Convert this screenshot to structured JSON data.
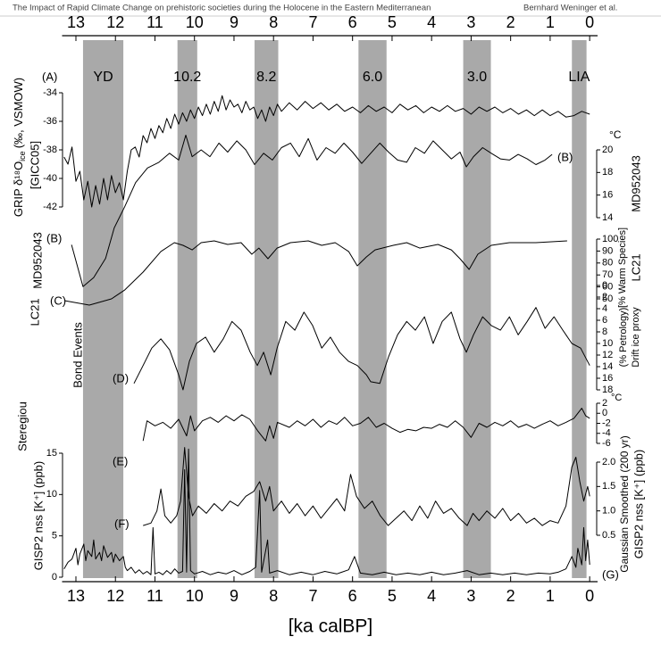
{
  "header": {
    "title": "The Impact of Rapid Climate Change on prehistoric societies during the Holocene in the Eastern Mediterranean",
    "authors": "Bernhard Weninger et al."
  },
  "chart_data": {
    "type": "line",
    "xlabel": "[ka calBP]",
    "xlim": [
      13.35,
      -0.2
    ],
    "xticks": [
      13,
      12,
      11,
      10,
      9,
      8,
      7,
      6,
      5,
      4,
      3,
      2,
      1,
      0
    ],
    "color": "#000000",
    "band_color": "#a9a9a9",
    "events": [
      {
        "label": "YD",
        "start": 12.82,
        "end": 11.8
      },
      {
        "label": "10.2",
        "start": 10.43,
        "end": 9.93
      },
      {
        "label": "8.2",
        "start": 8.48,
        "end": 7.88
      },
      {
        "label": "6.0",
        "start": 5.85,
        "end": 5.14
      },
      {
        "label": "3.0",
        "start": 3.2,
        "end": 2.5
      },
      {
        "label": "LIA",
        "start": 0.45,
        "end": 0.08
      }
    ],
    "panels": [
      {
        "label": "(A)",
        "ylabel": [
          "GRIP δ¹⁸O",
          "ice",
          "(‰, VSMOW)",
          "[GICC05]"
        ],
        "yaxis": "left",
        "ylim": [
          -42,
          -34
        ],
        "yticks": [
          -34,
          -36,
          -38,
          -40,
          -42
        ],
        "x": [
          13.3,
          13.2,
          13.1,
          13.0,
          12.9,
          12.8,
          12.7,
          12.6,
          12.5,
          12.4,
          12.3,
          12.2,
          12.1,
          12.0,
          11.9,
          11.8,
          11.7,
          11.6,
          11.5,
          11.4,
          11.3,
          11.2,
          11.1,
          11.0,
          10.9,
          10.8,
          10.7,
          10.6,
          10.5,
          10.4,
          10.3,
          10.2,
          10.1,
          10.0,
          9.9,
          9.8,
          9.7,
          9.6,
          9.5,
          9.4,
          9.3,
          9.2,
          9.1,
          9.0,
          8.9,
          8.8,
          8.7,
          8.6,
          8.5,
          8.4,
          8.3,
          8.2,
          8.1,
          8.0,
          7.9,
          7.8,
          7.6,
          7.4,
          7.2,
          7.0,
          6.8,
          6.6,
          6.4,
          6.2,
          6.0,
          5.8,
          5.6,
          5.4,
          5.2,
          5.0,
          4.8,
          4.6,
          4.4,
          4.2,
          4.0,
          3.8,
          3.6,
          3.4,
          3.2,
          3.0,
          2.8,
          2.6,
          2.4,
          2.2,
          2.0,
          1.8,
          1.6,
          1.4,
          1.2,
          1.0,
          0.8,
          0.6,
          0.4,
          0.2,
          0.0
        ],
        "values": [
          -38.5,
          -39,
          -37.8,
          -40.2,
          -39.5,
          -41.5,
          -40.2,
          -42,
          -40.5,
          -41.8,
          -40,
          -41.5,
          -39.8,
          -41,
          -40.3,
          -41.5,
          -39.5,
          -38,
          -37.8,
          -38.5,
          -37,
          -37.5,
          -36.5,
          -37.2,
          -36.3,
          -36.8,
          -35.8,
          -36.5,
          -35.5,
          -36.2,
          -35.4,
          -36,
          -35.2,
          -35.8,
          -35,
          -35.6,
          -34.8,
          -35.5,
          -34.6,
          -35.3,
          -34.2,
          -35.2,
          -34.5,
          -35,
          -34.8,
          -35.4,
          -34.6,
          -35.2,
          -35,
          -35.8,
          -35.2,
          -36,
          -35,
          -35.6,
          -34.8,
          -35.3,
          -34.7,
          -35.2,
          -34.6,
          -35.1,
          -34.7,
          -35.2,
          -34.8,
          -35.3,
          -35,
          -35.4,
          -34.9,
          -35.3,
          -35,
          -35.4,
          -34.8,
          -35.2,
          -34.9,
          -35.4,
          -35,
          -35.3,
          -34.9,
          -35.3,
          -35.1,
          -35.5,
          -35,
          -35.3,
          -35,
          -35.4,
          -35.1,
          -35.5,
          -35.2,
          -35.6,
          -35.2,
          -35.6,
          -35.3,
          -35.7,
          -35.6,
          -35.3,
          -35.5
        ]
      },
      {
        "label": "(B)",
        "name": "MD952043",
        "unit": "°C",
        "yaxis": "right",
        "ylim": [
          14,
          20
        ],
        "yticks": [
          14,
          16,
          18,
          20
        ],
        "x": [
          13.11,
          12.82,
          12.55,
          12.25,
          12.03,
          11.76,
          11.49,
          11.19,
          10.9,
          10.63,
          10.4,
          10.22,
          10.06,
          9.83,
          9.61,
          9.38,
          9.16,
          8.93,
          8.7,
          8.48,
          8.25,
          8.03,
          7.8,
          7.57,
          7.35,
          7.12,
          6.9,
          6.67,
          6.44,
          6.22,
          6.0,
          5.77,
          5.54,
          5.31,
          5.09,
          4.86,
          4.63,
          4.41,
          4.18,
          3.96,
          3.73,
          3.5,
          3.28,
          3.12,
          2.94,
          2.71,
          2.49,
          2.26,
          2.03,
          1.81,
          1.58,
          1.36,
          1.13,
          0.95
        ],
        "values": [
          11.6,
          7.9,
          8.7,
          10.4,
          13.1,
          15.0,
          17.1,
          18.4,
          18.9,
          19.7,
          19.1,
          21.3,
          19.4,
          20.0,
          19.4,
          20.6,
          19.8,
          20.8,
          20.0,
          18.7,
          19.7,
          19.1,
          20.2,
          20.6,
          19.4,
          21.0,
          19.1,
          20.2,
          19.7,
          20.6,
          19.8,
          18.8,
          19.7,
          20.6,
          19.8,
          19.1,
          18.9,
          20.2,
          19.7,
          20.8,
          20.0,
          19.2,
          19.8,
          18.5,
          19.4,
          20.2,
          19.7,
          19.2,
          19.1,
          19.6,
          19.2,
          18.7,
          19.1,
          19.6
        ]
      },
      {
        "label": "(C)",
        "name": "LC21",
        "ylabel": "[% Warm Species]",
        "yaxis": "right",
        "ylim": [
          50,
          100
        ],
        "yticks": [
          50,
          60,
          70,
          80,
          90,
          100
        ],
        "x": [
          13.29,
          12.66,
          12.1,
          11.76,
          11.3,
          10.85,
          10.51,
          10.29,
          10.06,
          9.83,
          9.5,
          9.16,
          8.82,
          8.55,
          8.37,
          8.14,
          7.91,
          7.57,
          7.12,
          6.78,
          6.44,
          6.1,
          5.88,
          5.65,
          5.43,
          4.97,
          4.63,
          4.3,
          3.84,
          3.5,
          3.28,
          3.05,
          2.83,
          2.49,
          2.03,
          1.36,
          0.57
        ],
        "values": [
          48.5,
          44.8,
          50,
          57.5,
          72.4,
          89.6,
          97,
          94.8,
          91,
          97,
          98.5,
          95.5,
          97,
          87.3,
          92.5,
          83.6,
          92.5,
          97,
          98.5,
          94.8,
          97,
          89.6,
          77.6,
          85.1,
          91,
          94.8,
          97,
          92.5,
          95.5,
          91,
          83.6,
          74.6,
          87.3,
          94.8,
          97,
          97,
          98.5
        ]
      },
      {
        "label": "(D)",
        "name": "Bond Events",
        "ylabel": [
          "Drift ice proxy",
          "(% Petrology)"
        ],
        "yaxis": "right",
        "ylim": [
          18,
          0
        ],
        "yticks": [
          0,
          2,
          4,
          6,
          8,
          10,
          12,
          14,
          16,
          18
        ],
        "x": [
          11.53,
          11.3,
          11.08,
          10.85,
          10.63,
          10.4,
          10.29,
          10.13,
          9.95,
          9.72,
          9.5,
          9.27,
          9.05,
          8.82,
          8.59,
          8.41,
          8.25,
          8.07,
          7.91,
          7.69,
          7.46,
          7.23,
          7.01,
          6.78,
          6.56,
          6.33,
          6.1,
          5.88,
          5.65,
          5.54,
          5.31,
          5.09,
          4.86,
          4.63,
          4.41,
          4.18,
          3.96,
          3.73,
          3.5,
          3.28,
          3.12,
          2.94,
          2.71,
          2.49,
          2.26,
          2.03,
          1.81,
          1.58,
          1.36,
          1.13,
          0.9,
          0.68,
          0.45,
          0.23,
          0.0
        ],
        "values": [
          16.9,
          13.8,
          10.8,
          9.2,
          11.1,
          15.4,
          18.0,
          13.1,
          10.0,
          8.9,
          11.5,
          9.2,
          6.2,
          7.7,
          11.5,
          13.8,
          11.5,
          15.4,
          10.8,
          6.2,
          7.7,
          4.6,
          6.9,
          10.8,
          8.9,
          11.5,
          13.1,
          13.8,
          15.4,
          16.6,
          16.9,
          12.3,
          8.5,
          6.2,
          7.7,
          5.4,
          10.0,
          6.2,
          4.6,
          9.2,
          11.5,
          8.5,
          5.4,
          6.9,
          7.7,
          5.4,
          8.5,
          6.2,
          3.8,
          7.4,
          5.4,
          7.7,
          10.0,
          10.8,
          13.8
        ]
      },
      {
        "label": "(E)",
        "name": "Steregiou",
        "unit": "°C",
        "yaxis": "right",
        "ylim": [
          -6,
          2
        ],
        "yticks": [
          2,
          0,
          -2,
          -4,
          -6
        ],
        "x": [
          11.3,
          11.2,
          11.0,
          10.8,
          10.6,
          10.4,
          10.2,
          10.1,
          10.0,
          9.8,
          9.6,
          9.4,
          9.2,
          9.0,
          8.8,
          8.6,
          8.4,
          8.2,
          8.1,
          8.0,
          7.9,
          7.6,
          7.4,
          7.2,
          7.0,
          6.8,
          6.6,
          6.4,
          6.2,
          6.0,
          5.8,
          5.6,
          5.4,
          5.2,
          5.0,
          4.8,
          4.6,
          4.4,
          4.2,
          4.0,
          3.8,
          3.6,
          3.4,
          3.2,
          3.0,
          2.8,
          2.6,
          2.4,
          2.2,
          2.0,
          1.8,
          1.6,
          1.4,
          1.2,
          1.0,
          0.8,
          0.6,
          0.4,
          0.2,
          0.1,
          0.0
        ],
        "values": [
          -5.5,
          -1.5,
          -2.5,
          -1.8,
          -3.0,
          -1.2,
          -4.5,
          -0.5,
          -3.5,
          -1.5,
          -0.8,
          -1.8,
          -0.5,
          -1.5,
          -0.3,
          -1.2,
          -3.5,
          -5.5,
          -2.5,
          -5.0,
          -1.8,
          -2.8,
          -1.5,
          -2.5,
          -1.2,
          -2.8,
          -1.5,
          -2.2,
          -0.8,
          -2.5,
          -2.0,
          -0.8,
          -2.8,
          -2.0,
          -3.0,
          -3.8,
          -3.2,
          -3.5,
          -2.8,
          -3.0,
          -2.2,
          -2.8,
          -1.5,
          -2.8,
          -4.8,
          -2.0,
          -2.8,
          -1.8,
          -2.5,
          -1.5,
          -2.8,
          -2.2,
          -3.0,
          -2.2,
          -1.5,
          -2.5,
          -1.8,
          -1.0,
          1.0,
          -0.5,
          -1.0
        ]
      },
      {
        "label": "(F)",
        "ylabel": [
          "Gaussian Smoothed (200 yr)",
          "GISP2 nss [K⁺] (ppb)"
        ],
        "yaxis": "right",
        "ylim": [
          0.5,
          2
        ],
        "yticks": [
          0.5,
          {
            "value": 1,
            "label": "1.0"
          },
          1.5,
          {
            "value": 2,
            "label": "2.0"
          }
        ],
        "x": [
          11.3,
          11.1,
          10.95,
          10.85,
          10.75,
          10.6,
          10.45,
          10.35,
          10.25,
          10.15,
          10.05,
          9.9,
          9.7,
          9.5,
          9.3,
          9.1,
          8.9,
          8.7,
          8.5,
          8.35,
          8.2,
          8.1,
          8.0,
          7.8,
          7.6,
          7.4,
          7.2,
          7.0,
          6.8,
          6.6,
          6.4,
          6.2,
          6.05,
          5.9,
          5.7,
          5.5,
          5.3,
          5.1,
          4.9,
          4.7,
          4.5,
          4.3,
          4.1,
          3.9,
          3.7,
          3.5,
          3.3,
          3.1,
          2.95,
          2.8,
          2.6,
          2.4,
          2.2,
          2.0,
          1.8,
          1.6,
          1.4,
          1.2,
          1.0,
          0.8,
          0.6,
          0.45,
          0.35,
          0.25,
          0.15,
          0.05,
          0.0
        ],
        "values": [
          0.7,
          0.75,
          1.0,
          1.45,
          0.9,
          0.75,
          0.9,
          1.2,
          2.3,
          1.3,
          0.9,
          1.1,
          0.95,
          1.15,
          1.0,
          1.2,
          1.1,
          1.3,
          1.4,
          1.6,
          1.2,
          1.5,
          1.0,
          1.2,
          0.95,
          1.15,
          0.9,
          1.1,
          0.85,
          1.05,
          1.25,
          1.0,
          1.75,
          1.3,
          1.05,
          1.2,
          0.9,
          0.7,
          0.85,
          1.0,
          0.8,
          1.1,
          0.85,
          1.2,
          0.95,
          1.05,
          0.85,
          0.7,
          0.95,
          0.8,
          1.0,
          0.85,
          1.05,
          0.8,
          0.95,
          0.75,
          0.85,
          0.7,
          0.8,
          0.75,
          1.1,
          1.9,
          2.1,
          1.6,
          1.2,
          1.5,
          1.3
        ]
      },
      {
        "label": "(G)",
        "ylabel": "GISP2 nss [K⁺] (ppb)",
        "yaxis": "left",
        "ylim": [
          0,
          15
        ],
        "yticks": [
          0,
          5,
          10,
          15
        ],
        "x": [
          13.3,
          13.2,
          13.1,
          13.0,
          12.95,
          12.9,
          12.8,
          12.75,
          12.7,
          12.6,
          12.55,
          12.5,
          12.4,
          12.35,
          12.3,
          12.2,
          12.1,
          12.05,
          12.0,
          11.9,
          11.8,
          11.75,
          11.7,
          11.6,
          11.5,
          11.4,
          11.3,
          11.2,
          11.1,
          11.05,
          11.0,
          10.9,
          10.8,
          10.7,
          10.6,
          10.5,
          10.4,
          10.3,
          10.25,
          10.2,
          10.15,
          10.1,
          10.0,
          9.8,
          9.6,
          9.4,
          9.2,
          9.0,
          8.8,
          8.6,
          8.45,
          8.35,
          8.3,
          8.15,
          8.1,
          7.9,
          7.6,
          7.3,
          7.0,
          6.7,
          6.4,
          6.1,
          5.95,
          5.8,
          5.5,
          5.2,
          4.9,
          4.6,
          4.3,
          4.0,
          3.7,
          3.4,
          3.1,
          2.8,
          2.5,
          2.2,
          1.9,
          1.6,
          1.3,
          1.0,
          0.8,
          0.6,
          0.45,
          0.35,
          0.3,
          0.2,
          0.15,
          0.1,
          0.05,
          0.0
        ],
        "values": [
          1.0,
          1.8,
          2.2,
          3.5,
          1.5,
          2.8,
          4.0,
          2.0,
          3.2,
          2.5,
          4.5,
          2.2,
          3.0,
          2.0,
          3.8,
          2.4,
          3.0,
          1.8,
          2.8,
          2.0,
          2.5,
          1.2,
          0.8,
          1.2,
          0.5,
          0.9,
          0.4,
          0.7,
          0.3,
          6.0,
          0.4,
          0.6,
          0.3,
          0.8,
          0.4,
          1.0,
          0.5,
          0.7,
          13.0,
          0.6,
          15.5,
          0.8,
          0.4,
          0.7,
          0.3,
          0.6,
          0.4,
          0.8,
          0.3,
          0.7,
          1.2,
          10.5,
          0.6,
          4.5,
          0.5,
          0.8,
          0.3,
          0.6,
          0.3,
          0.7,
          0.4,
          0.9,
          2.5,
          0.5,
          0.3,
          0.6,
          0.3,
          0.5,
          0.3,
          0.6,
          0.3,
          0.5,
          0.8,
          0.3,
          0.5,
          0.3,
          0.5,
          0.3,
          0.5,
          0.4,
          0.6,
          1.0,
          2.5,
          1.2,
          3.5,
          1.5,
          6.0,
          2.0,
          4.5,
          1.5
        ]
      }
    ]
  }
}
